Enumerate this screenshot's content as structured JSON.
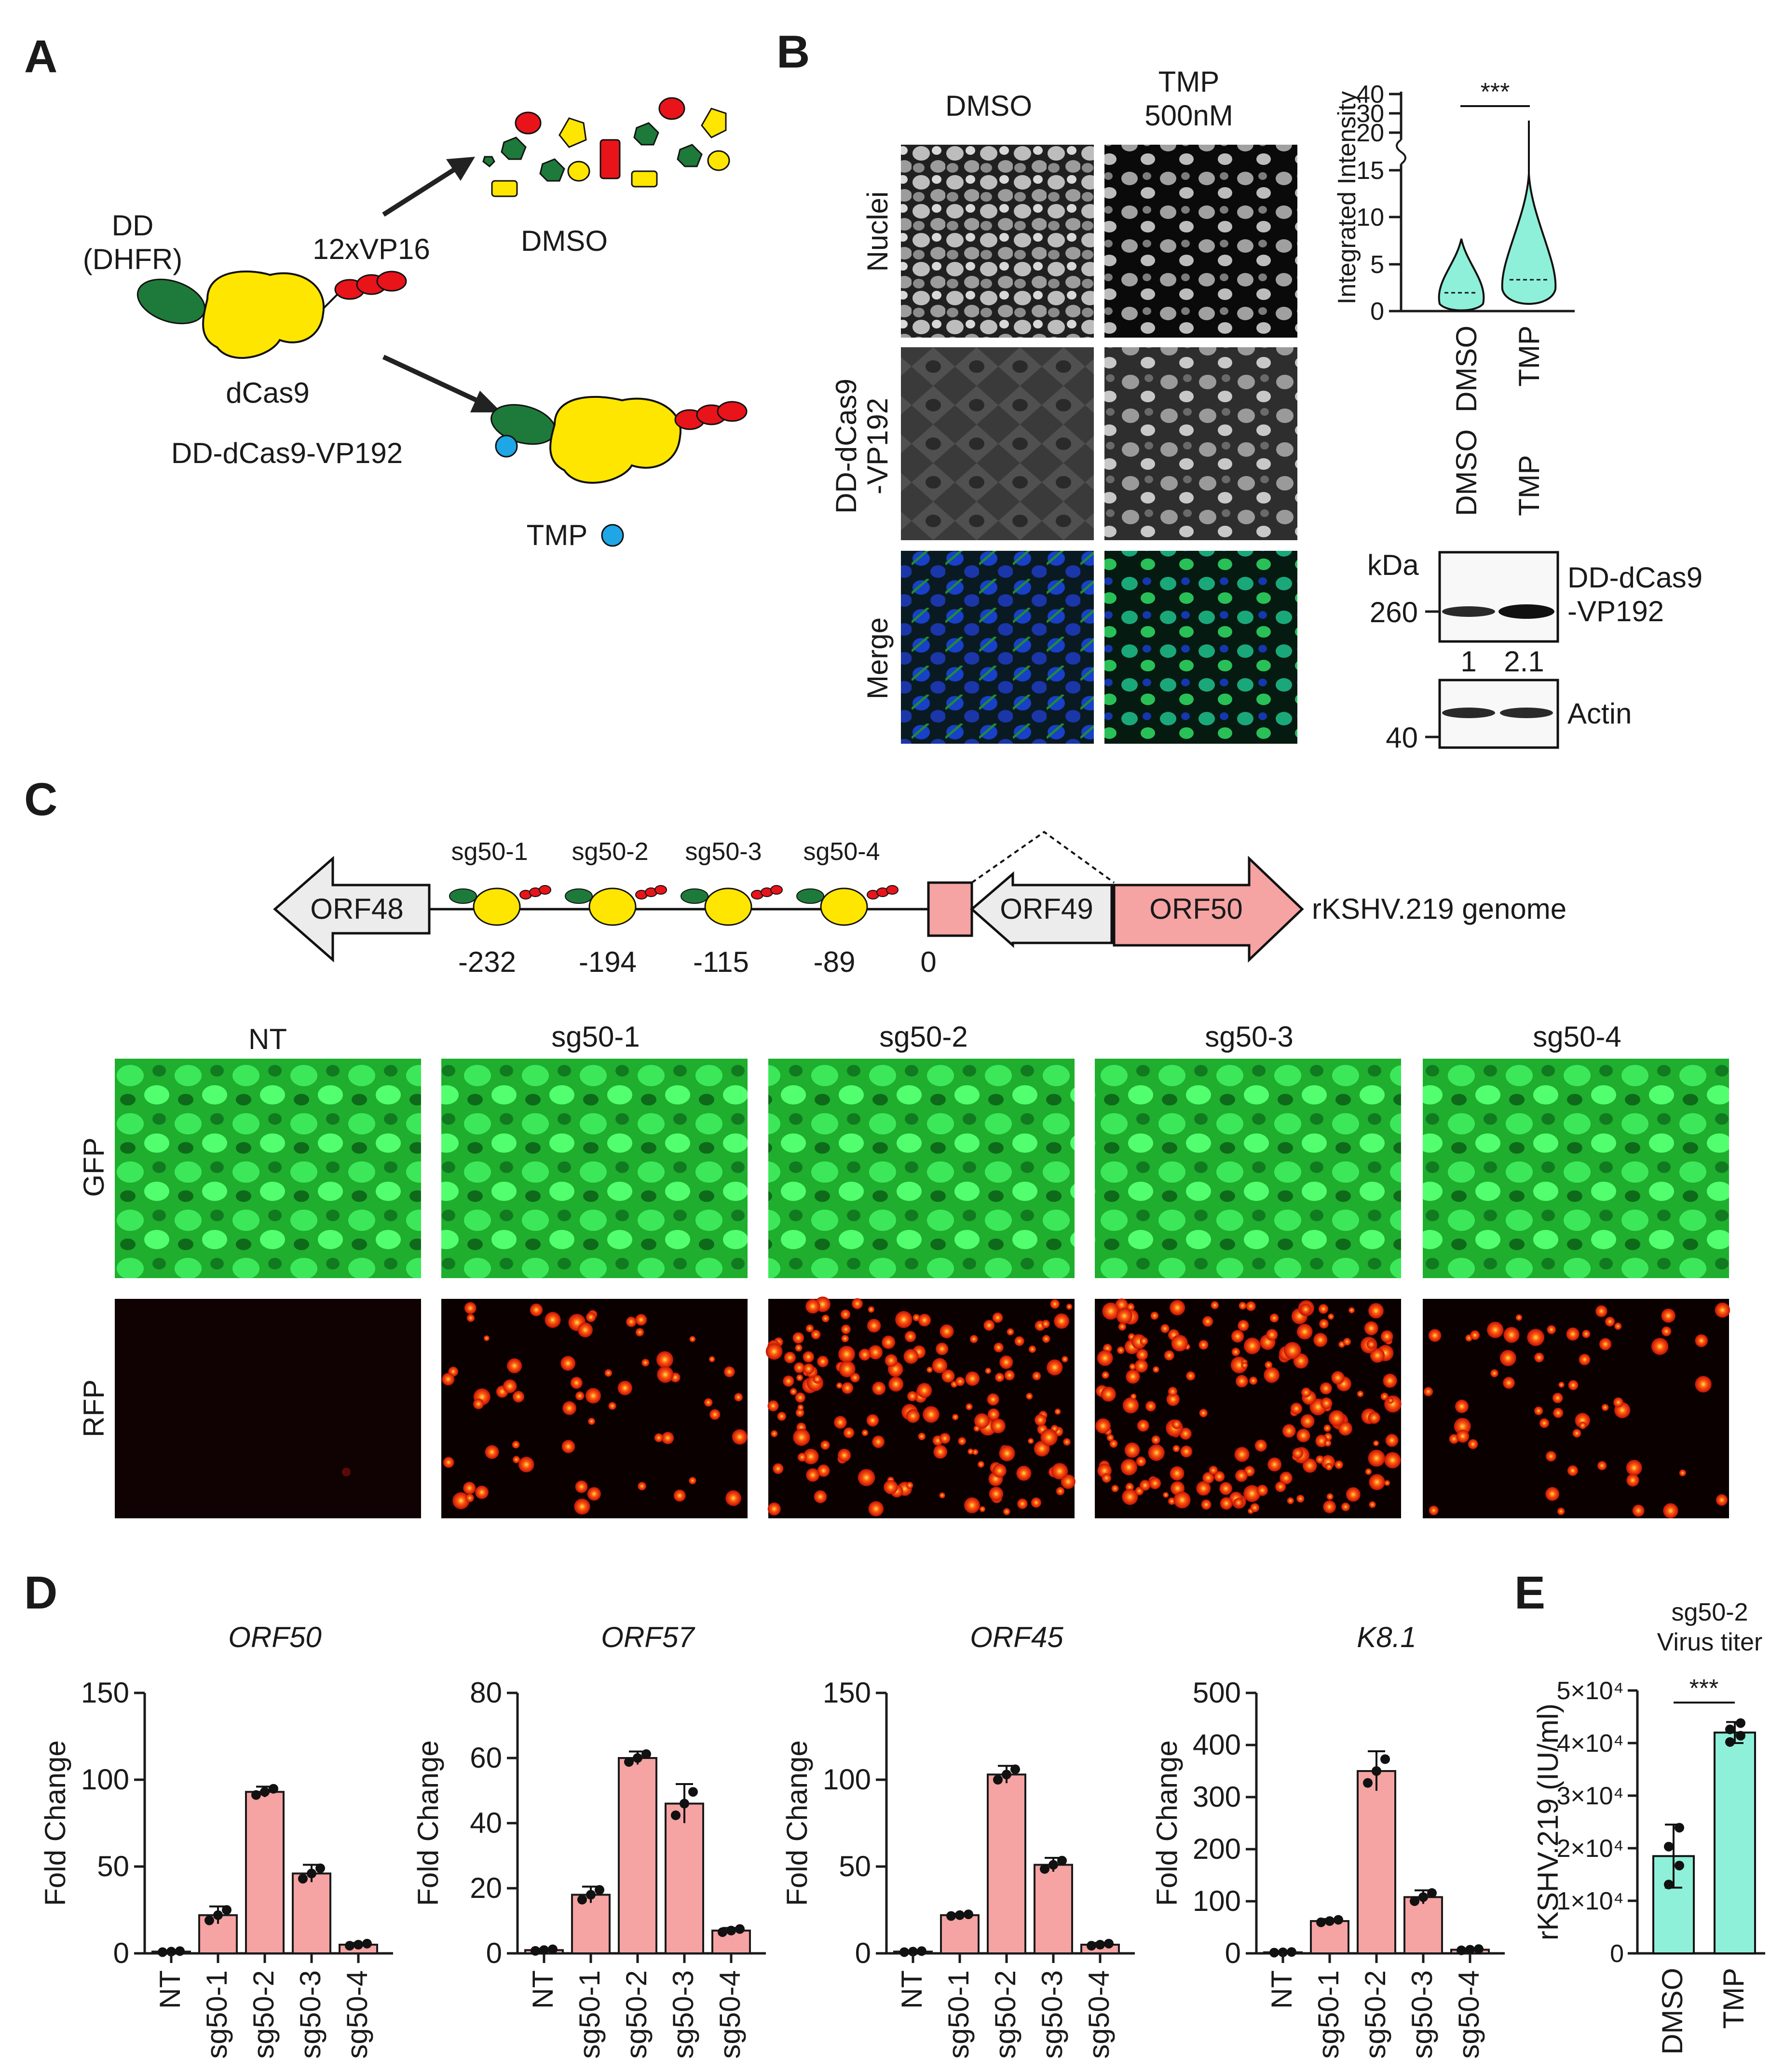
{
  "colors": {
    "bar": "#f5a3a3",
    "bar_stroke": "#1a1a1a",
    "teal": "#8ef0d8",
    "dd": "#1e7a3a",
    "dcas9": "#ffe600",
    "vp16": "#e8141a",
    "tmp": "#1fa6e6",
    "gfp": "#27c93a",
    "rfp": "#e82c10"
  },
  "panelA": {
    "letter": "A",
    "dd_label_1": "DD",
    "dd_label_2": "(DHFR)",
    "vp_label": "12xVP16",
    "dcas9_label": "dCas9",
    "construct_label": "DD-dCas9-VP192",
    "dmso_label": "DMSO",
    "tmp_label": "TMP"
  },
  "panelB": {
    "letter": "B",
    "col1": "DMSO",
    "col2_line1": "TMP",
    "col2_line2": "500nM",
    "row1": "Nuclei",
    "row2_line1": "DD-dCas9",
    "row2_line2": "-VP192",
    "row3": "Merge",
    "violin": {
      "ylabel": "Integrated Intensity",
      "sig": "***",
      "upper_ticks": [
        "40",
        "30",
        "20"
      ],
      "lower_ticks": [
        "15",
        "10",
        "5",
        "0"
      ],
      "categories": [
        "DMSO",
        "TMP"
      ]
    },
    "blot": {
      "lanes": [
        "DMSO",
        "TMP"
      ],
      "kda": "kDa",
      "marker_260": "260",
      "marker_40": "40",
      "target_line1": "DD-dCas9",
      "target_line2": "-VP192",
      "quant": [
        "1",
        "2.1"
      ],
      "loading": "Actin"
    }
  },
  "panelC": {
    "letter": "C",
    "guides": [
      "sg50-1",
      "sg50-2",
      "sg50-3",
      "sg50-4"
    ],
    "positions": [
      "-232",
      "-194",
      "-115",
      "-89",
      "0"
    ],
    "genes": {
      "orf48": "ORF48",
      "orf49": "ORF49",
      "orf50": "ORF50"
    },
    "genome_label": "rKSHV.219 genome",
    "columns": [
      "NT",
      "sg50-1",
      "sg50-2",
      "sg50-3",
      "sg50-4"
    ],
    "rows": [
      "GFP",
      "RFP"
    ]
  },
  "panelD": {
    "letter": "D",
    "ylabel": "Fold Change",
    "categories": [
      "NT",
      "sg50-1",
      "sg50-2",
      "sg50-3",
      "sg50-4"
    ]
  },
  "panelE": {
    "letter": "E",
    "title_line1": "sg50-2",
    "title_line2": "Virus titer",
    "ylabel": "rKSHV.219 (IU/ml)",
    "yticks": [
      "5×10⁴",
      "4×10⁴",
      "3×10⁴",
      "2×10⁴",
      "1×10⁴",
      "0"
    ],
    "sig": "***",
    "categories": [
      "DMSO",
      "TMP"
    ]
  },
  "chart_data": [
    {
      "type": "bar",
      "title": "ORF50",
      "ylabel": "Fold Change",
      "categories": [
        "NT",
        "sg50-1",
        "sg50-2",
        "sg50-3",
        "sg50-4"
      ],
      "values": [
        1,
        22,
        93,
        46,
        5
      ],
      "errors": [
        0.5,
        5,
        3,
        5,
        1
      ],
      "ylim": [
        0,
        150
      ],
      "yticks": [
        0,
        50,
        100,
        150
      ]
    },
    {
      "type": "bar",
      "title": "ORF57",
      "ylabel": "Fold Change",
      "categories": [
        "NT",
        "sg50-1",
        "sg50-2",
        "sg50-3",
        "sg50-4"
      ],
      "values": [
        1,
        18,
        60,
        46,
        7
      ],
      "errors": [
        0.4,
        2.5,
        2,
        6,
        0.8
      ],
      "ylim": [
        0,
        80
      ],
      "yticks": [
        0,
        20,
        40,
        60,
        80
      ]
    },
    {
      "type": "bar",
      "title": "ORF45",
      "ylabel": "Fold Change",
      "categories": [
        "NT",
        "sg50-1",
        "sg50-2",
        "sg50-3",
        "sg50-4"
      ],
      "values": [
        1,
        22,
        103,
        51,
        5
      ],
      "errors": [
        0.5,
        0.8,
        5,
        4,
        1
      ],
      "ylim": [
        0,
        150
      ],
      "yticks": [
        0,
        50,
        100,
        150
      ]
    },
    {
      "type": "bar",
      "title": "K8.1",
      "ylabel": "Fold Change",
      "categories": [
        "NT",
        "sg50-1",
        "sg50-2",
        "sg50-3",
        "sg50-4"
      ],
      "values": [
        2,
        62,
        350,
        108,
        7
      ],
      "errors": [
        1,
        4,
        38,
        13,
        2
      ],
      "ylim": [
        0,
        500
      ],
      "yticks": [
        0,
        100,
        200,
        300,
        400,
        500
      ]
    },
    {
      "type": "bar",
      "title": "sg50-2 Virus titer",
      "ylabel": "rKSHV.219 (IU/ml)",
      "categories": [
        "DMSO",
        "TMP"
      ],
      "values": [
        18500,
        42000
      ],
      "errors": [
        6000,
        2000
      ],
      "ylim": [
        0,
        50000
      ]
    }
  ]
}
